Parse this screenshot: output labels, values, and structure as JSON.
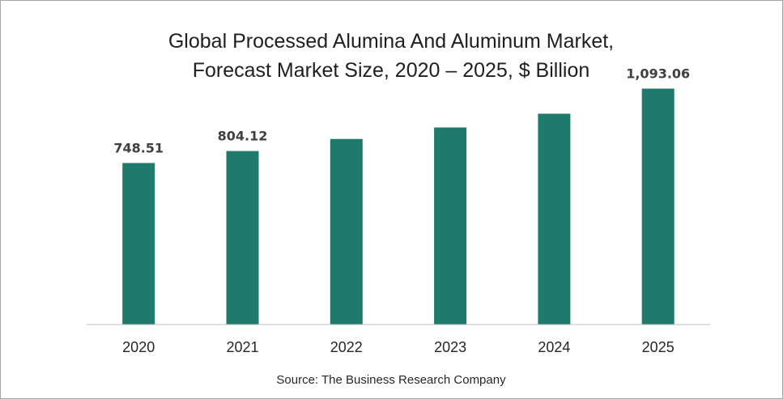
{
  "chart_data": {
    "type": "bar",
    "title": "Global Processed Alumina And Aluminum Market, Forecast Market Size, 2020 – 2025, $ Billion",
    "title_lines": [
      "Global Processed Alumina And Aluminum Market,",
      "Forecast Market Size, 2020 – 2025, $ Billion"
    ],
    "categories": [
      "2020",
      "2021",
      "2022",
      "2023",
      "2024",
      "2025"
    ],
    "values": [
      748.51,
      804.12,
      860,
      913,
      977,
      1093.06
    ],
    "data_labels": [
      "748.51",
      "804.12",
      "",
      "",
      "",
      "1,093.06"
    ],
    "ylim": [
      0,
      1200
    ],
    "xlabel": "",
    "ylabel": "",
    "grid": false,
    "legend": "none",
    "bar_color": "#1f7a6c",
    "source": "Source: The Business Research Company"
  }
}
